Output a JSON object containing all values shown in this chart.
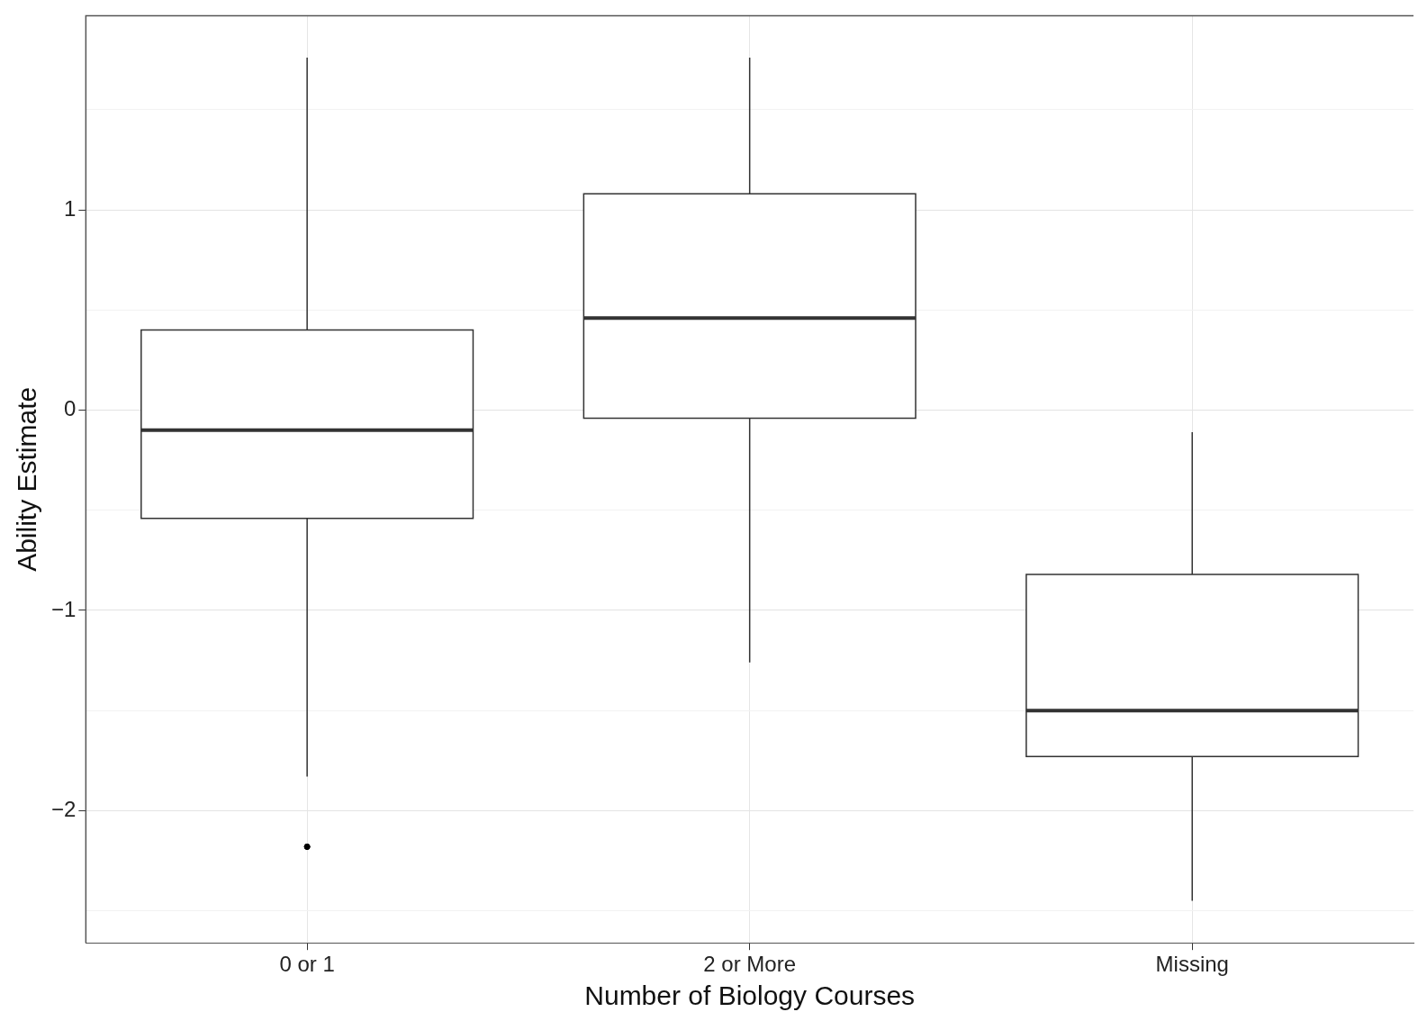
{
  "chart_data": {
    "type": "box",
    "xlabel": "Number of Biology Courses",
    "ylabel": "Ability Estimate",
    "categories": [
      "0 or 1",
      "2 or More",
      "Missing"
    ],
    "boxes": [
      {
        "low": -1.83,
        "q1": -0.54,
        "median": -0.1,
        "q3": 0.4,
        "high": 1.76,
        "outliers": [
          -2.18
        ]
      },
      {
        "low": -1.26,
        "q1": -0.04,
        "median": 0.46,
        "q3": 1.08,
        "high": 1.76
      },
      {
        "low": -2.45,
        "q1": -1.73,
        "median": -1.5,
        "q3": -0.82,
        "high": -0.11
      }
    ],
    "color": "#ffffff",
    "ylim": [
      -2.66,
      1.97
    ],
    "yticks": [
      {
        "value": -2.5,
        "label": null
      },
      -2,
      {
        "value": -1.5,
        "label": null
      },
      -1,
      {
        "value": -0.5,
        "label": null
      },
      0,
      {
        "value": 0.5,
        "label": null
      },
      1,
      {
        "value": 1.5,
        "label": null
      }
    ],
    "grid": true,
    "legend": false
  }
}
